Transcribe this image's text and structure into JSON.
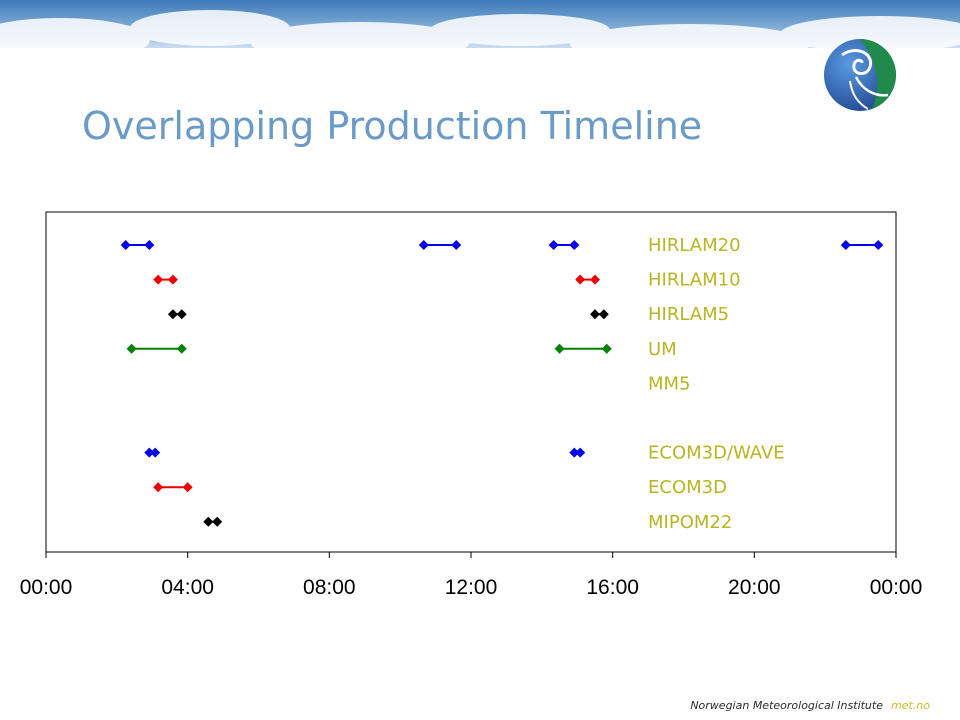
{
  "slide": {
    "title": "Overlapping Production Timeline"
  },
  "footer": {
    "institute": "Norwegian Meteorological Institute",
    "brand": "met.no"
  },
  "colors": {
    "title": "#6a9ac8",
    "labels": "#b7b522",
    "blue": "#0000ee",
    "red": "#ee0000",
    "black": "#000000",
    "green": "#008000"
  },
  "chart_data": {
    "type": "scatter",
    "x_unit": "hours",
    "xlim": [
      "00:00",
      "24:00"
    ],
    "xtick_labels": [
      "00:00",
      "04:00",
      "08:00",
      "12:00",
      "16:00",
      "20:00",
      "00:00"
    ],
    "series": [
      {
        "name": "HIRLAM20",
        "color": "blue",
        "intervals": [
          [
            "02:15",
            "02:55"
          ],
          [
            "10:40",
            "11:35"
          ],
          [
            "14:20",
            "14:55"
          ],
          [
            "22:35",
            "23:30"
          ]
        ]
      },
      {
        "name": "HIRLAM10",
        "color": "red",
        "intervals": [
          [
            "03:10",
            "03:35"
          ],
          [
            "15:05",
            "15:30"
          ]
        ]
      },
      {
        "name": "HIRLAM5",
        "color": "black",
        "intervals": [
          [
            "03:35",
            "03:50"
          ],
          [
            "15:30",
            "15:45"
          ]
        ]
      },
      {
        "name": "UM",
        "color": "green",
        "intervals": [
          [
            "02:25",
            "03:50"
          ],
          [
            "14:30",
            "15:50"
          ]
        ]
      },
      {
        "name": "MM5",
        "color": "none",
        "intervals": []
      },
      {
        "name": "",
        "color": "none",
        "intervals": []
      },
      {
        "name": "ECOM3D/WAVE",
        "color": "blue",
        "intervals": [
          [
            "02:55",
            "03:05"
          ],
          [
            "14:55",
            "15:05"
          ]
        ]
      },
      {
        "name": "ECOM3D",
        "color": "red",
        "intervals": [
          [
            "03:10",
            "04:00"
          ]
        ]
      },
      {
        "name": "MIPOM22",
        "color": "black",
        "intervals": [
          [
            "04:35",
            "04:50"
          ]
        ]
      }
    ]
  }
}
